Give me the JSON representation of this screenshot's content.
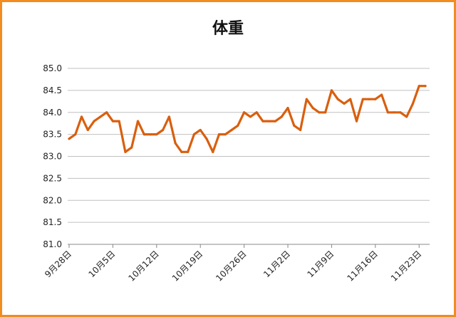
{
  "chart_data": {
    "type": "line",
    "title": "体重",
    "xlabel": "",
    "ylabel": "",
    "ylim": [
      81.0,
      85.0
    ],
    "yticks": [
      "81.0",
      "81.5",
      "82.0",
      "82.5",
      "83.0",
      "83.5",
      "84.0",
      "84.5",
      "85.0"
    ],
    "xtick_labels": [
      "9月28日",
      "10月5日",
      "10月12日",
      "10月19日",
      "10月26日",
      "11月2日",
      "11月9日",
      "11月16日",
      "11月23日"
    ],
    "xtick_dates": [
      "2013-09-28",
      "2013-10-05",
      "2013-10-12",
      "2013-10-19",
      "2013-10-26",
      "2013-11-02",
      "2013-11-09",
      "2013-11-16",
      "2013-11-23"
    ],
    "grid": true,
    "legend": "none",
    "line_color": "#d95f0e",
    "series": [
      {
        "x": [
          "2013-09-28",
          "2013-09-29",
          "2013-09-30",
          "2013-10-01",
          "2013-10-02",
          "2013-10-03",
          "2013-10-04",
          "2013-10-05",
          "2013-10-06",
          "2013-10-07",
          "2013-10-08",
          "2013-10-09",
          "2013-10-10",
          "2013-10-11",
          "2013-10-12",
          "2013-10-13",
          "2013-10-14",
          "2013-10-15",
          "2013-10-16",
          "2013-10-17",
          "2013-10-18",
          "2013-10-19",
          "2013-10-20",
          "2013-10-21",
          "2013-10-22",
          "2013-10-23",
          "2013-10-24",
          "2013-10-25",
          "2013-10-26",
          "2013-10-27",
          "2013-10-28",
          "2013-10-29",
          "2013-10-30",
          "2013-10-31",
          "2013-11-01",
          "2013-11-02",
          "2013-11-03",
          "2013-11-04",
          "2013-11-05",
          "2013-11-06",
          "2013-11-07",
          "2013-11-08",
          "2013-11-09",
          "2013-11-10",
          "2013-11-11",
          "2013-11-12",
          "2013-11-13",
          "2013-11-14",
          "2013-11-15",
          "2013-11-16",
          "2013-11-17",
          "2013-11-18",
          "2013-11-19",
          "2013-11-20",
          "2013-11-21",
          "2013-11-22",
          "2013-11-23",
          "2013-11-24"
        ],
        "values": [
          83.4,
          83.5,
          83.9,
          83.6,
          83.8,
          83.9,
          84.0,
          83.8,
          83.8,
          83.1,
          83.2,
          83.8,
          83.5,
          83.5,
          83.5,
          83.6,
          83.9,
          83.3,
          83.1,
          83.1,
          83.5,
          83.6,
          83.4,
          83.1,
          83.5,
          83.5,
          83.6,
          83.7,
          84.0,
          83.9,
          84.0,
          83.8,
          83.8,
          83.8,
          83.9,
          84.1,
          83.7,
          83.6,
          84.3,
          84.1,
          84.0,
          84.0,
          84.5,
          84.3,
          84.2,
          84.3,
          83.8,
          84.3,
          84.3,
          84.3,
          84.4,
          84.0,
          84.0,
          84.0,
          83.9,
          84.2,
          84.6,
          84.6
        ]
      }
    ]
  }
}
